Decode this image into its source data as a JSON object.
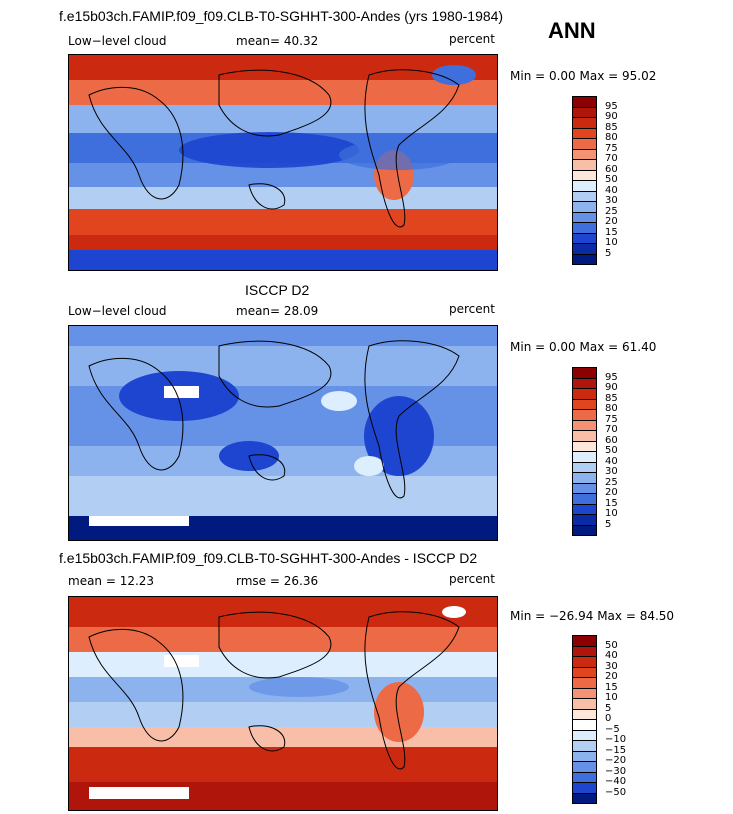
{
  "season": "ANN",
  "panels": [
    {
      "title": "f.e15b03ch.FAMIP.f09_f09.CLB-T0-SGHHT-300-Andes (yrs 1980-1984)",
      "left_label": "Low−level cloud",
      "mid_label": "mean=  40.32",
      "units": "percent",
      "minmax": "Min =    0.00 Max =  95.02",
      "colorbar_labels": [
        "95",
        "90",
        "85",
        "80",
        "75",
        "70",
        "60",
        "50",
        "40",
        "30",
        "25",
        "20",
        "15",
        "10",
        "5"
      ],
      "colors": [
        "#8b0000",
        "#b0150b",
        "#cc2a10",
        "#e0451f",
        "#ec6a45",
        "#f39373",
        "#f8bea8",
        "#fde6da",
        "#ddeeff",
        "#b2cff3",
        "#8db3ee",
        "#6592e6",
        "#3e6fdc",
        "#1d45cf",
        "#0a2aa6",
        "#001a80"
      ]
    },
    {
      "title": "ISCCP D2",
      "left_label": "Low−level cloud",
      "mid_label": "mean=  28.09",
      "units": "percent",
      "minmax": "Min =    0.00 Max =  61.40",
      "colorbar_labels": [
        "95",
        "90",
        "85",
        "80",
        "75",
        "70",
        "60",
        "50",
        "40",
        "30",
        "25",
        "20",
        "15",
        "10",
        "5"
      ],
      "colors": [
        "#8b0000",
        "#b0150b",
        "#cc2a10",
        "#e0451f",
        "#ec6a45",
        "#f39373",
        "#f8bea8",
        "#fde6da",
        "#ddeeff",
        "#b2cff3",
        "#8db3ee",
        "#6592e6",
        "#3e6fdc",
        "#1d45cf",
        "#0a2aa6",
        "#001a80"
      ]
    },
    {
      "title": "f.e15b03ch.FAMIP.f09_f09.CLB-T0-SGHHT-300-Andes - ISCCP D2",
      "left_label": "mean =  12.23",
      "mid_label": "rmse =  26.36",
      "units": "percent",
      "minmax": "Min = −26.94 Max =  84.50",
      "colorbar_labels": [
        "50",
        "40",
        "30",
        "20",
        "15",
        "10",
        "5",
        "0",
        "−5",
        "−10",
        "−15",
        "−20",
        "−30",
        "−40",
        "−50"
      ],
      "colors": [
        "#8b0000",
        "#b0150b",
        "#cc2a10",
        "#e0451f",
        "#ec6a45",
        "#f39373",
        "#f8bea8",
        "#fde6da",
        "#ffffff",
        "#ddeeff",
        "#b2cff3",
        "#8db3ee",
        "#6592e6",
        "#3e6fdc",
        "#1d45cf",
        "#001a80"
      ]
    }
  ]
}
